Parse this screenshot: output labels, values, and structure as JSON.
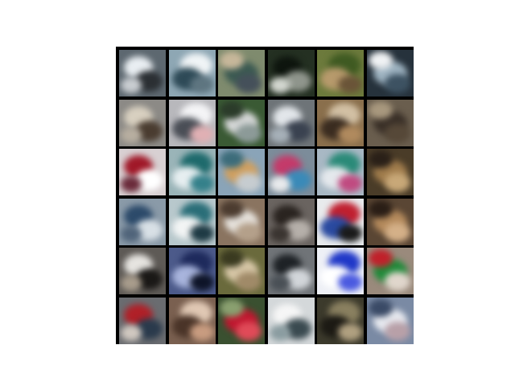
{
  "grid": {
    "rows": 6,
    "cols": 6,
    "tiles": [
      {
        "bg": "#5d6870",
        "blobs": [
          {
            "c": "#e9eef2"
          },
          {
            "c": "#2b2f33"
          },
          {
            "c": "#c9cdd1"
          }
        ]
      },
      {
        "bg": "#8ea7b4",
        "blobs": [
          {
            "c": "#f0f4f6"
          },
          {
            "c": "#2e4a57"
          },
          {
            "c": "#5e7580"
          }
        ]
      },
      {
        "bg": "#7f8b6e",
        "blobs": [
          {
            "c": "#3c5a52"
          },
          {
            "c": "#c7b79a"
          },
          {
            "c": "#45505a"
          }
        ]
      },
      {
        "bg": "#243022",
        "blobs": [
          {
            "c": "#0e150e"
          },
          {
            "c": "#8f958c"
          },
          {
            "c": "#d2d6cf"
          }
        ]
      },
      {
        "bg": "#6c7a3c",
        "blobs": [
          {
            "c": "#3f5a22"
          },
          {
            "c": "#b79a6c"
          },
          {
            "c": "#6a5438"
          }
        ]
      },
      {
        "bg": "#26323c",
        "blobs": [
          {
            "c": "#9fb4c2"
          },
          {
            "c": "#f0f2f4"
          },
          {
            "c": "#3d5262"
          }
        ]
      },
      {
        "bg": "#8c8a86",
        "blobs": [
          {
            "c": "#d8d0c0"
          },
          {
            "c": "#4a3c30"
          },
          {
            "c": "#b7aea0"
          }
        ]
      },
      {
        "bg": "#b8b8bc",
        "blobs": [
          {
            "c": "#f4f4f6"
          },
          {
            "c": "#4a4e56"
          },
          {
            "c": "#e0b0b4"
          }
        ]
      },
      {
        "bg": "#3a5a34",
        "blobs": [
          {
            "c": "#d6d8d8"
          },
          {
            "c": "#2b3b2a"
          },
          {
            "c": "#8c9a98"
          }
        ]
      },
      {
        "bg": "#6e7478",
        "blobs": [
          {
            "c": "#e2e6ea"
          },
          {
            "c": "#3a4250"
          },
          {
            "c": "#a6b0b8"
          }
        ]
      },
      {
        "bg": "#8a6f4c",
        "blobs": [
          {
            "c": "#d2c0a4"
          },
          {
            "c": "#3a2c20"
          },
          {
            "c": "#b08a5e"
          }
        ]
      },
      {
        "bg": "#6a5e4e",
        "blobs": [
          {
            "c": "#3a3028"
          },
          {
            "c": "#a8987e"
          },
          {
            "c": "#564838"
          }
        ]
      },
      {
        "bg": "#d8d0d2",
        "blobs": [
          {
            "c": "#a01828"
          },
          {
            "c": "#ffffff"
          },
          {
            "c": "#6a2a3a"
          }
        ]
      },
      {
        "bg": "#9ab4b8",
        "blobs": [
          {
            "c": "#1e6a6c"
          },
          {
            "c": "#e6eef0"
          },
          {
            "c": "#34808a"
          }
        ]
      },
      {
        "bg": "#8aa4b8",
        "blobs": [
          {
            "c": "#d0a060"
          },
          {
            "c": "#3c6c7a"
          },
          {
            "c": "#c6ccd0"
          }
        ]
      },
      {
        "bg": "#7c8c9a",
        "blobs": [
          {
            "c": "#c43a6a"
          },
          {
            "c": "#3a8ab8"
          },
          {
            "c": "#e8eaec"
          }
        ]
      },
      {
        "bg": "#a8b8c4",
        "blobs": [
          {
            "c": "#2a8a78"
          },
          {
            "c": "#e4e8ec"
          },
          {
            "c": "#c04a80"
          }
        ]
      },
      {
        "bg": "#4a3c28",
        "blobs": [
          {
            "c": "#a07c4c"
          },
          {
            "c": "#2a2018"
          },
          {
            "c": "#c8a878"
          }
        ]
      },
      {
        "bg": "#8a9aa8",
        "blobs": [
          {
            "c": "#2c4a6a"
          },
          {
            "c": "#d8e0e6"
          },
          {
            "c": "#50647a"
          }
        ]
      },
      {
        "bg": "#b8c8cc",
        "blobs": [
          {
            "c": "#2a6e78"
          },
          {
            "c": "#f2f4f4"
          },
          {
            "c": "#1e3a44"
          }
        ]
      },
      {
        "bg": "#8a7460",
        "blobs": [
          {
            "c": "#e6e2dc"
          },
          {
            "c": "#4c3c30"
          },
          {
            "c": "#b4a08a"
          }
        ]
      },
      {
        "bg": "#6a6460",
        "blobs": [
          {
            "c": "#2a2420"
          },
          {
            "c": "#b6b0aa"
          },
          {
            "c": "#3a3430"
          }
        ]
      },
      {
        "bg": "#e8eaec",
        "blobs": [
          {
            "c": "#c02030"
          },
          {
            "c": "#2a4aa0"
          },
          {
            "c": "#1a1a1a"
          }
        ]
      },
      {
        "bg": "#5a4634",
        "blobs": [
          {
            "c": "#b48a5c"
          },
          {
            "c": "#2a1e16"
          },
          {
            "c": "#d4b088"
          }
        ]
      },
      {
        "bg": "#5e5a56",
        "blobs": [
          {
            "c": "#e6e4e0"
          },
          {
            "c": "#1a1816"
          },
          {
            "c": "#a89c8c"
          }
        ]
      },
      {
        "bg": "#4c5a8a",
        "blobs": [
          {
            "c": "#1e2a5c"
          },
          {
            "c": "#a8b4dc"
          },
          {
            "c": "#0e1428"
          }
        ]
      },
      {
        "bg": "#6a6a3c",
        "blobs": [
          {
            "c": "#d8c8a8"
          },
          {
            "c": "#3a3a20"
          },
          {
            "c": "#a08a68"
          }
        ]
      },
      {
        "bg": "#707478",
        "blobs": [
          {
            "c": "#1e2226"
          },
          {
            "c": "#d2d6da"
          },
          {
            "c": "#4a5056"
          }
        ]
      },
      {
        "bg": "#eef0f6",
        "blobs": [
          {
            "c": "#2038c8"
          },
          {
            "c": "#ffffff"
          },
          {
            "c": "#4a5ae0"
          }
        ]
      },
      {
        "bg": "#9a8a7c",
        "blobs": [
          {
            "c": "#208a3a"
          },
          {
            "c": "#c0202a"
          },
          {
            "c": "#e0d6cc"
          }
        ]
      },
      {
        "bg": "#6a6c70",
        "blobs": [
          {
            "c": "#b02028"
          },
          {
            "c": "#2a3a4c"
          },
          {
            "c": "#d0c8c0"
          }
        ]
      },
      {
        "bg": "#7a6050",
        "blobs": [
          {
            "c": "#e0c8b4"
          },
          {
            "c": "#4a3428"
          },
          {
            "c": "#c89c80"
          }
        ]
      },
      {
        "bg": "#3a5030",
        "blobs": [
          {
            "c": "#c01830"
          },
          {
            "c": "#8aa070"
          },
          {
            "c": "#e04a58"
          }
        ]
      },
      {
        "bg": "#d4d8da",
        "blobs": [
          {
            "c": "#f6f6f6"
          },
          {
            "c": "#3a4a50"
          },
          {
            "c": "#8a9ca0"
          }
        ]
      },
      {
        "bg": "#3c3a2c",
        "blobs": [
          {
            "c": "#8a8060"
          },
          {
            "c": "#1c1a14"
          },
          {
            "c": "#b0a080"
          }
        ]
      },
      {
        "bg": "#7a8aa4",
        "blobs": [
          {
            "c": "#e8eaf0"
          },
          {
            "c": "#3a4a66"
          },
          {
            "c": "#b8a0a8"
          }
        ]
      }
    ]
  }
}
